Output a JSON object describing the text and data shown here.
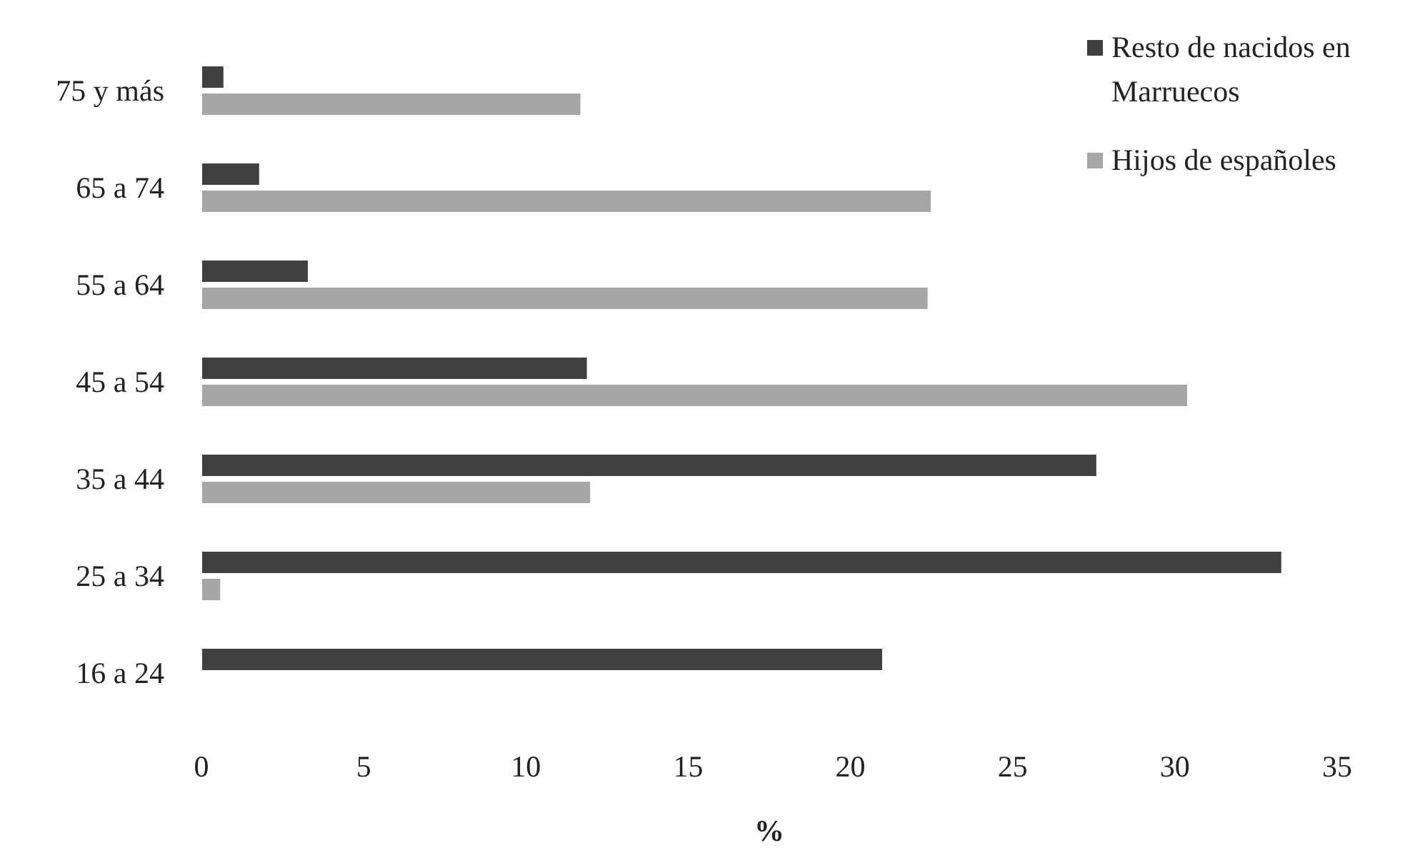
{
  "chart_data": {
    "type": "bar",
    "orientation": "horizontal",
    "xlabel": "%",
    "categories": [
      "75 y más",
      "65 a 74",
      "55 a 64",
      "45 a 54",
      "35 a 44",
      "25 a 34",
      "16 a 24"
    ],
    "series": [
      {
        "name": "Resto de nacidos en Marruecos",
        "color": "#404040",
        "values": [
          0.7,
          1.8,
          3.3,
          11.9,
          27.6,
          33.3,
          21.0
        ]
      },
      {
        "name": "Hijos de españoles",
        "color": "#a6a6a6",
        "values": [
          11.7,
          22.5,
          22.4,
          30.4,
          12.0,
          0.6,
          0
        ]
      }
    ],
    "xlim": [
      0,
      35
    ],
    "xticks": [
      0,
      5,
      10,
      15,
      20,
      25,
      30,
      35
    ],
    "legend": "top right"
  }
}
